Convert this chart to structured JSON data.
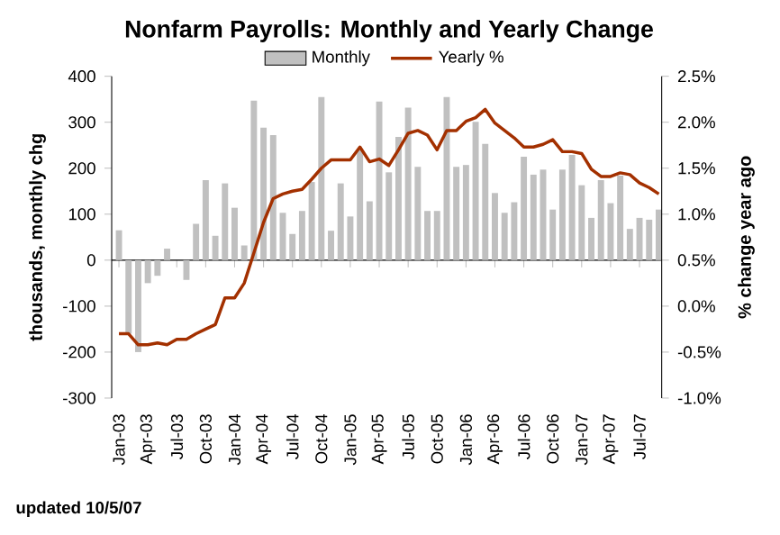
{
  "chart_data": {
    "type": "bar",
    "title": "Nonfarm Payrolls: Monthly and Yearly Change",
    "ylabel": "thousands, monthly chg",
    "y2label": "% change year ago",
    "categories": [
      "Jan-03",
      null,
      null,
      "Apr-03",
      null,
      null,
      "Jul-03",
      null,
      null,
      "Oct-03",
      null,
      null,
      "Jan-04",
      null,
      null,
      "Apr-04",
      null,
      null,
      "Jul-04",
      null,
      null,
      "Oct-04",
      null,
      null,
      "Jan-05",
      null,
      null,
      "Apr-05",
      null,
      null,
      "Jul-05",
      null,
      null,
      "Oct-05",
      null,
      null,
      "Jan-06",
      null,
      null,
      "Apr-06",
      null,
      null,
      "Jul-06",
      null,
      null,
      "Oct-06",
      null,
      null,
      "Jan-07",
      null,
      null,
      "Apr-07",
      null,
      null,
      "Jul-07",
      null,
      null
    ],
    "series": [
      {
        "name": "Monthly",
        "color": "#c0c0c0",
        "values": [
          65,
          -160,
          -200,
          -50,
          -34,
          25,
          null,
          -43,
          79,
          174,
          53,
          167,
          114,
          32,
          347,
          288,
          272,
          103,
          57,
          107,
          170,
          355,
          64,
          167,
          95,
          240,
          128,
          345,
          191,
          268,
          332,
          203,
          107,
          107,
          355,
          203,
          207,
          301,
          253,
          146,
          103,
          126,
          225,
          186,
          197,
          110,
          197,
          229,
          163,
          92,
          174,
          124,
          184,
          68,
          92,
          88,
          110
        ]
      },
      {
        "name": "Yearly %",
        "type": "line",
        "axis": "y2",
        "color": "#a33000",
        "values": [
          -0.3,
          -0.3,
          -0.42,
          -0.42,
          -0.4,
          -0.42,
          -0.36,
          -0.36,
          -0.3,
          -0.25,
          -0.2,
          0.09,
          0.09,
          0.25,
          0.58,
          0.91,
          1.17,
          1.22,
          1.25,
          1.27,
          1.38,
          1.5,
          1.59,
          1.59,
          1.59,
          1.73,
          1.57,
          1.6,
          1.53,
          1.7,
          1.88,
          1.91,
          1.86,
          1.7,
          1.91,
          1.91,
          2.01,
          2.05,
          2.14,
          1.99,
          1.91,
          1.83,
          1.73,
          1.73,
          1.76,
          1.81,
          1.68,
          1.68,
          1.66,
          1.49,
          1.41,
          1.41,
          1.45,
          1.43,
          1.34,
          1.29,
          1.22
        ]
      }
    ],
    "ylim": [
      -300,
      400
    ],
    "yticks": [
      -300,
      -200,
      -100,
      0,
      100,
      200,
      300,
      400
    ],
    "y2lim": [
      -1.0,
      2.5
    ],
    "y2ticks": [
      {
        "value": -1.0,
        "label": "-1.0%"
      },
      {
        "value": -0.5,
        "label": "-0.5%"
      },
      {
        "value": 0.0,
        "label": "0.0%"
      },
      {
        "value": 0.5,
        "label": "0.5%"
      },
      {
        "value": 1.0,
        "label": "1.0%"
      },
      {
        "value": 1.5,
        "label": "1.5%"
      },
      {
        "value": 2.0,
        "label": "2.0%"
      },
      {
        "value": 2.5,
        "label": "2.5%"
      }
    ],
    "legend": "top",
    "annotations": [
      "updated 10/5/07"
    ]
  }
}
